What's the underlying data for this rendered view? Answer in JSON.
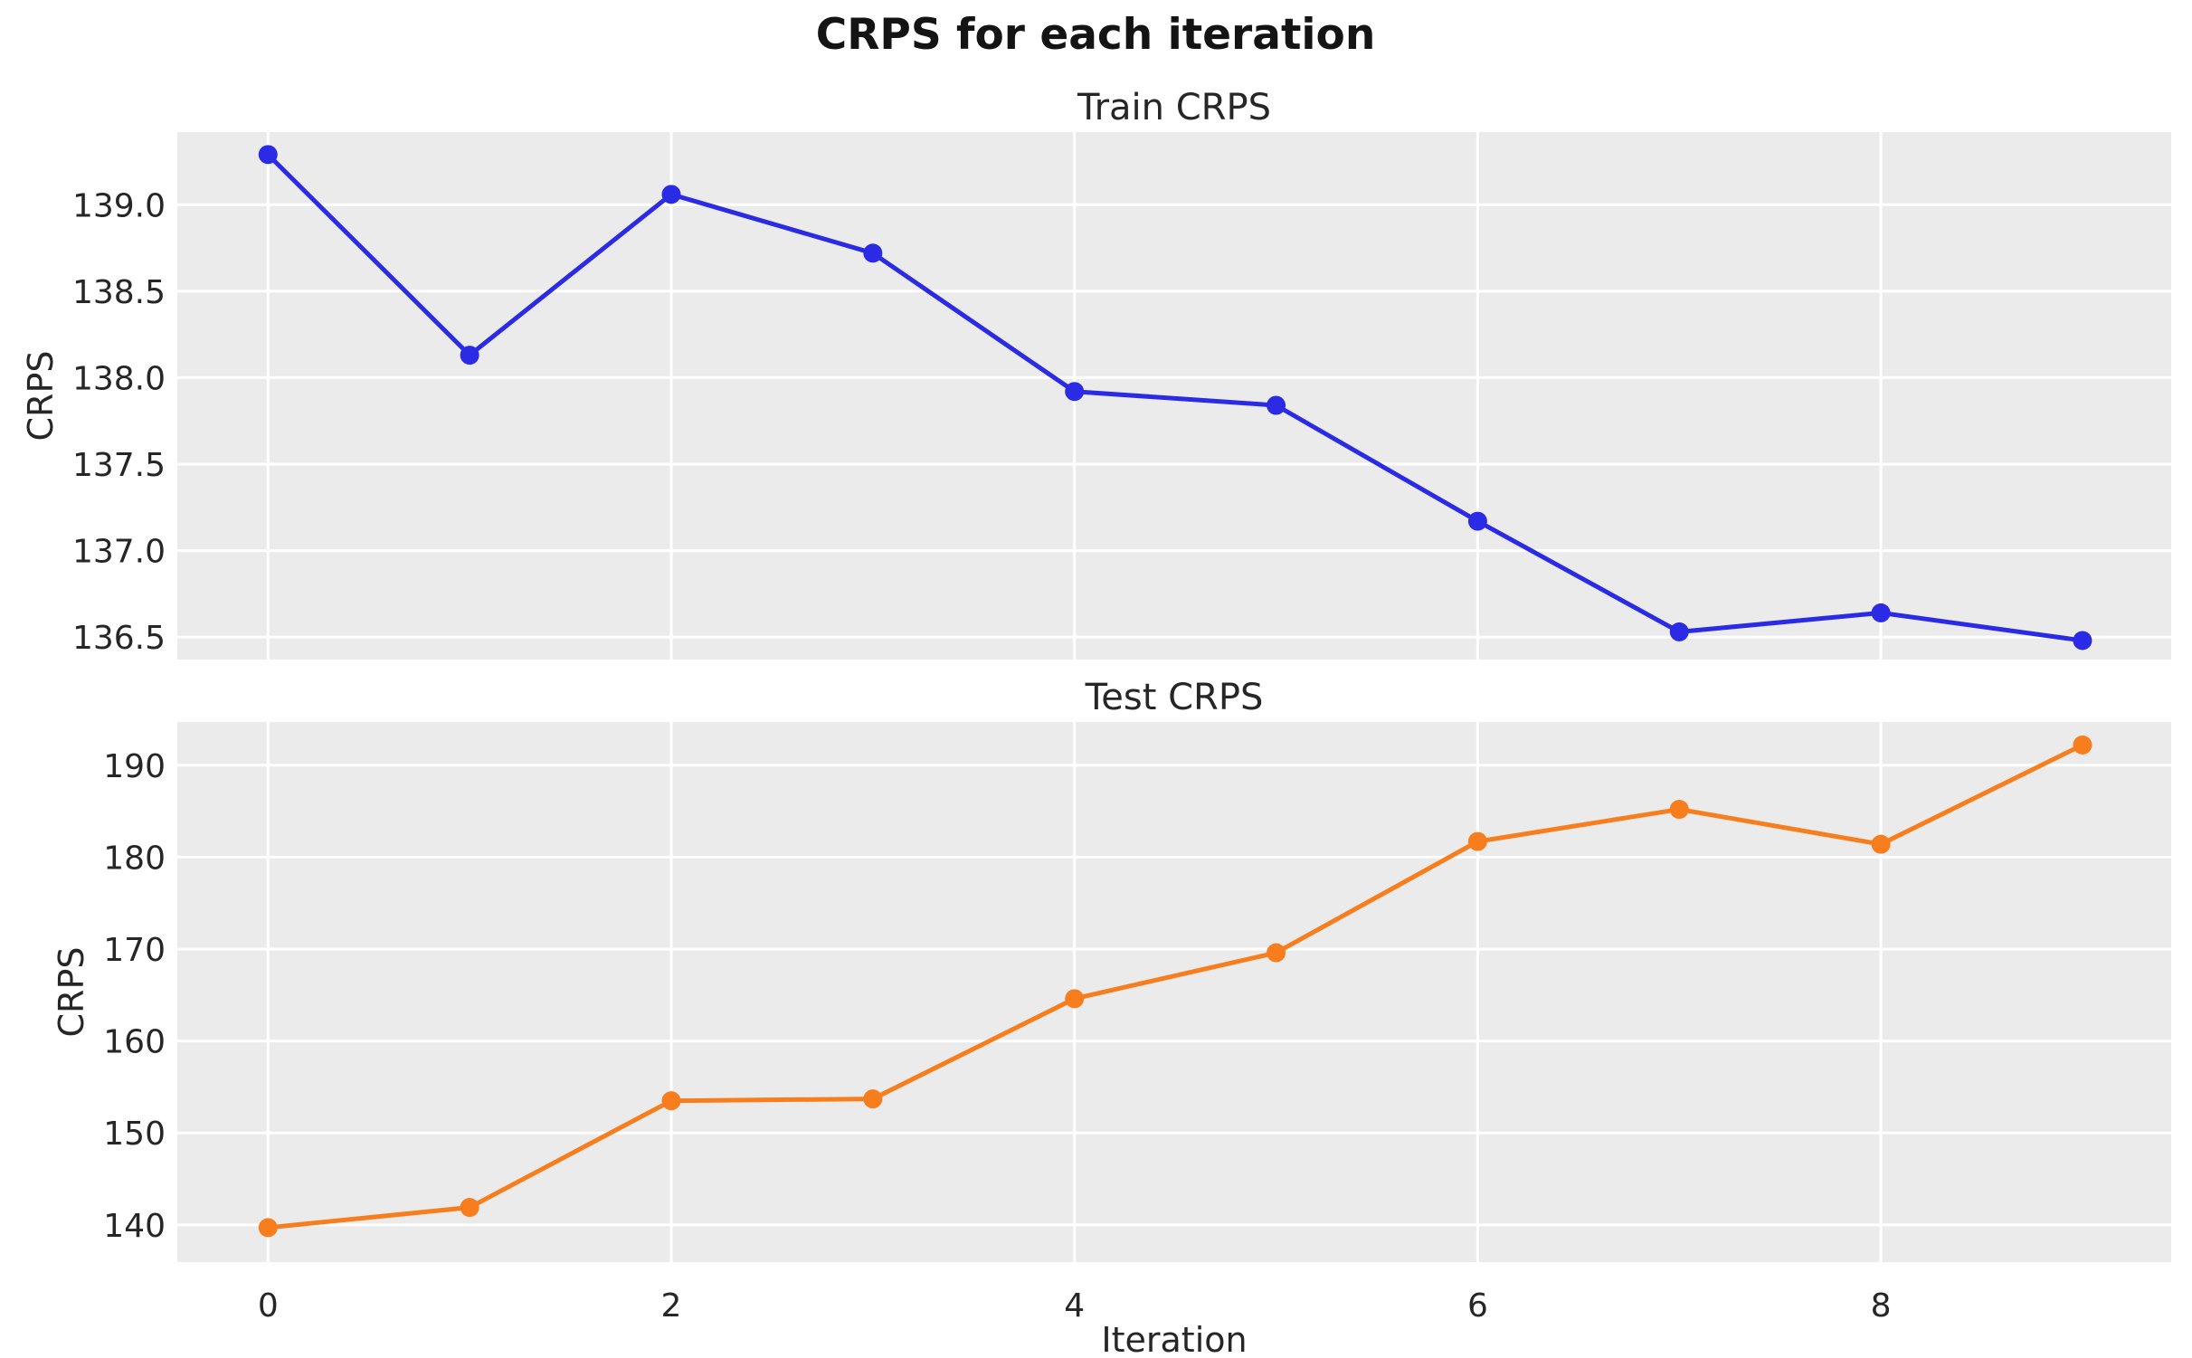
{
  "figure": {
    "title": "CRPS for each iteration"
  },
  "style": {
    "plot_background": "#ebebeb",
    "grid_color": "#ffffff",
    "tick_text_color": "#262626",
    "title_color": "#141414",
    "train_line_color": "#2b2be6",
    "test_line_color": "#f87d1d"
  },
  "chart_data": [
    {
      "type": "line",
      "title": "Train CRPS",
      "xlabel": "",
      "ylabel": "CRPS",
      "series_name": "Train CRPS",
      "color": "#2b2be6",
      "marker": "circle",
      "grid": true,
      "x": [
        0,
        1,
        2,
        3,
        4,
        5,
        6,
        7,
        8,
        9
      ],
      "y": [
        139.29,
        138.13,
        139.06,
        138.72,
        137.92,
        137.84,
        137.17,
        136.53,
        136.64,
        136.48
      ],
      "xlim": [
        -0.45,
        9.44
      ],
      "ylim": [
        136.37,
        139.42
      ],
      "xticks": [
        0,
        2,
        4,
        6,
        8
      ],
      "xtick_labels": [
        "0",
        "2",
        "4",
        "6",
        "8"
      ],
      "show_xtick_labels": false,
      "yticks": [
        136.5,
        137.0,
        137.5,
        138.0,
        138.5,
        139.0
      ],
      "ytick_labels": [
        "136.5",
        "137.0",
        "137.5",
        "138.0",
        "138.5",
        "139.0"
      ]
    },
    {
      "type": "line",
      "title": "Test CRPS",
      "xlabel": "Iteration",
      "ylabel": "CRPS",
      "series_name": "Test CRPS",
      "color": "#f87d1d",
      "marker": "circle",
      "grid": true,
      "x": [
        0,
        1,
        2,
        3,
        4,
        5,
        6,
        7,
        8,
        9
      ],
      "y": [
        139.7,
        141.9,
        153.5,
        153.7,
        164.6,
        169.6,
        181.7,
        185.2,
        181.4,
        192.2
      ],
      "xlim": [
        -0.45,
        9.44
      ],
      "ylim": [
        135.95,
        194.7
      ],
      "xticks": [
        0,
        2,
        4,
        6,
        8
      ],
      "xtick_labels": [
        "0",
        "2",
        "4",
        "6",
        "8"
      ],
      "show_xtick_labels": true,
      "yticks": [
        140,
        150,
        160,
        170,
        180,
        190
      ],
      "ytick_labels": [
        "140",
        "150",
        "160",
        "170",
        "180",
        "190"
      ]
    }
  ]
}
